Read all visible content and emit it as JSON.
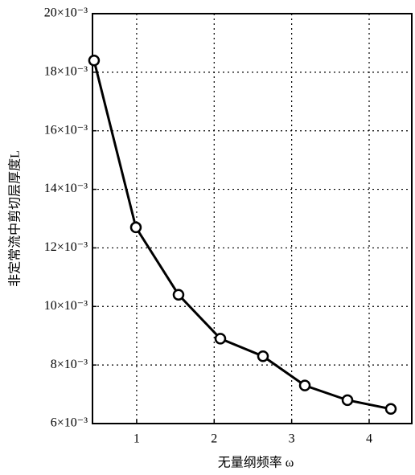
{
  "chart_data": {
    "type": "line",
    "x_label": "无量纲频率 ω",
    "y_label": "非定常流中剪切层厚度L",
    "x": [
      0.45,
      0.99,
      1.54,
      2.08,
      2.63,
      3.17,
      3.72,
      4.28
    ],
    "series": [
      {
        "name": "L",
        "color": "#000000",
        "values": [
          0.0184,
          0.0127,
          0.0104,
          0.0089,
          0.0083,
          0.0073,
          0.0068,
          0.0065
        ]
      }
    ],
    "xlim": [
      0.43,
      4.55
    ],
    "xticks": [
      1,
      2,
      3,
      4
    ],
    "ylim": [
      0.006,
      0.02
    ],
    "yticks": [
      {
        "value": 0.006,
        "label": "6×10⁻³"
      },
      {
        "value": 0.008,
        "label": "8×10⁻³"
      },
      {
        "value": 0.01,
        "label": "10×10⁻³"
      },
      {
        "value": 0.012,
        "label": "12×10⁻³"
      },
      {
        "value": 0.014,
        "label": "14×10⁻³"
      },
      {
        "value": 0.016,
        "label": "16×10⁻³"
      },
      {
        "value": 0.018,
        "label": "18×10⁻³"
      },
      {
        "value": 0.02,
        "label": "20×10⁻³"
      }
    ],
    "grid": true,
    "marker": "circle"
  }
}
